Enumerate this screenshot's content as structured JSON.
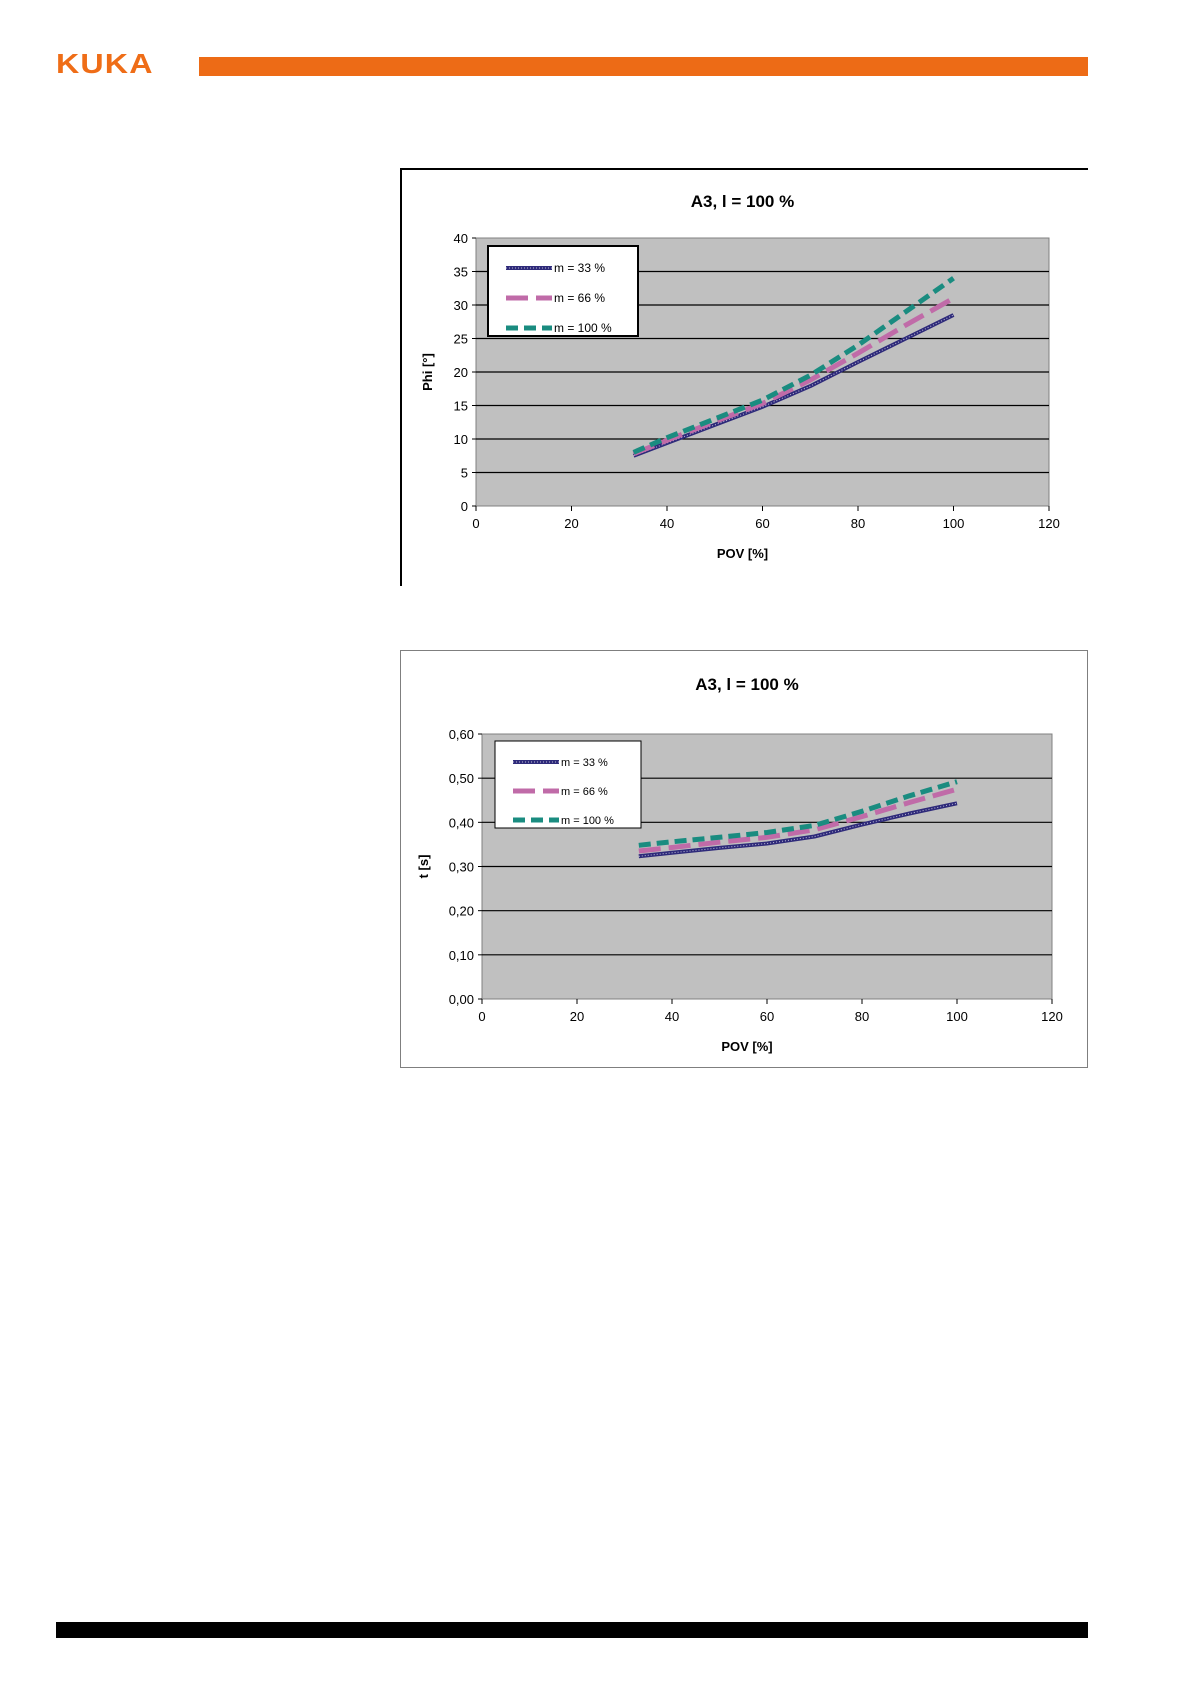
{
  "header": {
    "logo_text": "KUKA",
    "accent_color": "#ed6b16"
  },
  "chart_data": [
    {
      "type": "line",
      "title": "A3,  l = 100 %",
      "xlabel": "POV [%]",
      "ylabel": "Phi [°]",
      "xlim": [
        0,
        120
      ],
      "ylim": [
        0,
        40
      ],
      "xticks": [
        "0",
        "20",
        "40",
        "60",
        "80",
        "100",
        "120"
      ],
      "yticks": [
        "0",
        "5",
        "10",
        "15",
        "20",
        "25",
        "30",
        "35",
        "40"
      ],
      "grid": true,
      "legend_position": "top-left",
      "plot_background": "#c0c0c0",
      "series": [
        {
          "name": "m = 33 %",
          "color": "#2e2a7a",
          "style": "dotted-thick",
          "x": [
            33,
            40,
            50,
            60,
            70,
            80,
            90,
            100
          ],
          "y": [
            7.5,
            9.4,
            12.1,
            14.8,
            17.9,
            21.5,
            25.0,
            28.5
          ]
        },
        {
          "name": "m = 66 %",
          "color": "#c06ba8",
          "style": "long-dash",
          "x": [
            33,
            40,
            50,
            60,
            70,
            80,
            90,
            100
          ],
          "y": [
            7.8,
            9.8,
            12.6,
            15.3,
            18.8,
            22.8,
            27.0,
            31.0
          ]
        },
        {
          "name": "m = 100 %",
          "color": "#1a8c80",
          "style": "dash",
          "x": [
            33,
            40,
            50,
            60,
            70,
            80,
            90,
            100
          ],
          "y": [
            8.0,
            10.2,
            13.0,
            15.8,
            19.5,
            24.0,
            29.0,
            34.0
          ]
        }
      ]
    },
    {
      "type": "line",
      "title": "A3, l = 100 %",
      "xlabel": "POV [%]",
      "ylabel": "t [s]",
      "xlim": [
        0,
        120
      ],
      "ylim": [
        0,
        0.6
      ],
      "xticks": [
        "0",
        "20",
        "40",
        "60",
        "80",
        "100",
        "120"
      ],
      "yticks": [
        "0,00",
        "0,10",
        "0,20",
        "0,30",
        "0,40",
        "0,50",
        "0,60"
      ],
      "grid": true,
      "legend_position": "top-left",
      "plot_background": "#c0c0c0",
      "series": [
        {
          "name": "m = 33 %",
          "color": "#2e2a7a",
          "style": "dotted-thick",
          "x": [
            33,
            40,
            50,
            60,
            70,
            80,
            90,
            100
          ],
          "y": [
            0.323,
            0.331,
            0.342,
            0.352,
            0.368,
            0.395,
            0.42,
            0.443
          ]
        },
        {
          "name": "m = 66 %",
          "color": "#c06ba8",
          "style": "long-dash",
          "x": [
            33,
            40,
            50,
            60,
            70,
            80,
            90,
            100
          ],
          "y": [
            0.335,
            0.343,
            0.355,
            0.366,
            0.383,
            0.413,
            0.445,
            0.475
          ]
        },
        {
          "name": "m = 100 %",
          "color": "#1a8c80",
          "style": "dash",
          "x": [
            33,
            40,
            50,
            60,
            70,
            80,
            90,
            100
          ],
          "y": [
            0.348,
            0.356,
            0.366,
            0.377,
            0.393,
            0.425,
            0.46,
            0.492
          ]
        }
      ]
    }
  ]
}
